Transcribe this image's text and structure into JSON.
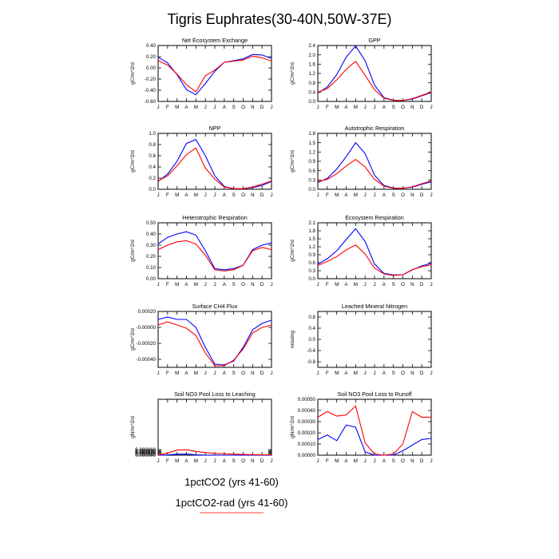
{
  "figure_title": "Tigris Euphrates(30-40N,50W-37E)",
  "months": [
    "J",
    "F",
    "M",
    "A",
    "M",
    "J",
    "J",
    "A",
    "S",
    "O",
    "N",
    "D",
    "J"
  ],
  "colors": {
    "series_1": "#0000ff",
    "series_2": "#ff0000"
  },
  "legend": {
    "items": [
      {
        "label": "1pctCO2 (yrs 41-60)",
        "color": "#0000ff"
      },
      {
        "label": "1pctCO2-rad (yrs 41-60)",
        "color": "#ff0000"
      }
    ]
  },
  "chart_data": [
    {
      "type": "line",
      "title": "Net Ecosystem Exchange",
      "ylabel": "gC/m^2/d",
      "ylim": [
        -0.6,
        0.4
      ],
      "yticks": [
        "0.40",
        "0.20",
        "0.00",
        "-0.20",
        "-0.40",
        "-0.60"
      ],
      "series": [
        {
          "values": [
            0.19,
            0.09,
            -0.12,
            -0.39,
            -0.48,
            -0.28,
            -0.06,
            0.1,
            0.13,
            0.16,
            0.24,
            0.23,
            0.17
          ]
        },
        {
          "values": [
            0.13,
            0.05,
            -0.11,
            -0.3,
            -0.43,
            -0.14,
            -0.04,
            0.1,
            0.12,
            0.14,
            0.21,
            0.18,
            0.12
          ]
        }
      ]
    },
    {
      "type": "line",
      "title": "GPP",
      "ylabel": "gC/m^2/d",
      "ylim": [
        0.0,
        2.4
      ],
      "yticks": [
        "2.4",
        "2.0",
        "1.6",
        "1.2",
        "0.8",
        "0.4",
        "0.0"
      ],
      "series": [
        {
          "values": [
            0.36,
            0.62,
            1.15,
            1.9,
            2.38,
            1.75,
            0.7,
            0.16,
            0.05,
            0.04,
            0.1,
            0.24,
            0.38
          ]
        },
        {
          "values": [
            0.4,
            0.55,
            0.92,
            1.38,
            1.72,
            1.12,
            0.5,
            0.14,
            0.04,
            0.04,
            0.12,
            0.26,
            0.4
          ]
        }
      ]
    },
    {
      "type": "line",
      "title": "NPP",
      "ylabel": "gC/m^2/d",
      "ylim": [
        0.0,
        1.0
      ],
      "yticks": [
        "1.0",
        "0.8",
        "0.6",
        "0.4",
        "0.2",
        "0.0"
      ],
      "series": [
        {
          "values": [
            0.14,
            0.27,
            0.5,
            0.82,
            0.89,
            0.6,
            0.24,
            0.05,
            0.01,
            0.01,
            0.03,
            0.07,
            0.14
          ]
        },
        {
          "values": [
            0.15,
            0.24,
            0.42,
            0.62,
            0.74,
            0.38,
            0.18,
            0.04,
            0.01,
            0.01,
            0.04,
            0.09,
            0.15
          ]
        }
      ]
    },
    {
      "type": "line",
      "title": "Autotrophic Respiration",
      "ylabel": "gC/m^2/d",
      "ylim": [
        0.0,
        1.8
      ],
      "yticks": [
        "1.8",
        "1.5",
        "1.2",
        "0.9",
        "0.6",
        "0.3",
        "0.0"
      ],
      "series": [
        {
          "values": [
            0.22,
            0.35,
            0.65,
            1.05,
            1.5,
            1.15,
            0.45,
            0.12,
            0.04,
            0.03,
            0.07,
            0.16,
            0.24
          ]
        },
        {
          "values": [
            0.25,
            0.32,
            0.5,
            0.75,
            0.96,
            0.72,
            0.32,
            0.1,
            0.03,
            0.03,
            0.08,
            0.18,
            0.27
          ]
        }
      ]
    },
    {
      "type": "line",
      "title": "Heterotrophic Respiration",
      "ylabel": "gC/m^2/d",
      "ylim": [
        0.0,
        0.5
      ],
      "yticks": [
        "0.50",
        "0.40",
        "0.30",
        "0.20",
        "0.10",
        "0.00"
      ],
      "series": [
        {
          "values": [
            0.31,
            0.37,
            0.4,
            0.42,
            0.39,
            0.25,
            0.09,
            0.08,
            0.09,
            0.12,
            0.26,
            0.3,
            0.32
          ]
        },
        {
          "values": [
            0.26,
            0.3,
            0.33,
            0.34,
            0.31,
            0.21,
            0.08,
            0.07,
            0.08,
            0.12,
            0.25,
            0.28,
            0.26
          ]
        }
      ]
    },
    {
      "type": "line",
      "title": "Ecosystem Respiration",
      "ylabel": "gC/m^2/d",
      "ylim": [
        0.0,
        2.1
      ],
      "yticks": [
        "2.1",
        "1.8",
        "1.5",
        "1.2",
        "0.9",
        "0.6",
        "0.3",
        "0.0"
      ],
      "series": [
        {
          "values": [
            0.55,
            0.75,
            1.05,
            1.47,
            1.88,
            1.4,
            0.55,
            0.2,
            0.14,
            0.15,
            0.33,
            0.48,
            0.58
          ]
        },
        {
          "values": [
            0.5,
            0.65,
            0.83,
            1.08,
            1.27,
            0.93,
            0.4,
            0.18,
            0.12,
            0.15,
            0.34,
            0.45,
            0.52
          ]
        }
      ]
    },
    {
      "type": "line",
      "title": "Surface CH4 Flux",
      "ylabel": "gC/m^2/d",
      "ylim": [
        -0.0005,
        0.0002
      ],
      "yticks": [
        "0.00020",
        "-0.00000",
        "-0.00020",
        "-0.00040"
      ],
      "series": [
        {
          "values": [
            0.0001,
            0.00013,
            0.0001,
            0.0001,
            0.0,
            -0.00025,
            -0.00046,
            -0.00047,
            -0.00042,
            -0.00025,
            -3e-05,
            5e-05,
            9e-05
          ]
        },
        {
          "values": [
            3e-05,
            7e-05,
            3e-05,
            -1e-05,
            -0.0001,
            -0.00032,
            -0.00048,
            -0.00048,
            -0.00041,
            -0.00027,
            -7e-05,
            0.0,
            3e-05
          ]
        }
      ]
    },
    {
      "type": "line",
      "title": "Leached Mineral Nitrogen",
      "ylabel": "missing",
      "ylim": [
        -1.0,
        1.0
      ],
      "yticks": [
        "0.8",
        "0.4",
        "0.0",
        "-0.4",
        "-0.8"
      ],
      "series": []
    },
    {
      "type": "line",
      "title": "Soil NO3 Pool Loss to Leaching",
      "ylabel": "gN/m^2/d",
      "ylim": [
        0.0,
        0.0006
      ],
      "yticks": [
        "0.000060",
        "0.000050",
        "0.000040",
        "0.000030",
        "0.000020",
        "0.000010",
        "0.000000"
      ],
      "series": [
        {
          "values": [
            5e-07,
            3e-06,
            1.1e-05,
            1.2e-05,
            4e-06,
            1e-06,
            3e-07,
            1e-07,
            0.0,
            0.0,
            0.0,
            0.0,
            5e-07
          ]
        },
        {
          "values": [
            5e-06,
            2.2e-05,
            5.5e-05,
            5.8e-05,
            4e-05,
            2.8e-05,
            2e-05,
            1.5e-05,
            1.1e-05,
            8e-06,
            6e-06,
            4e-06,
            5e-06
          ]
        }
      ]
    },
    {
      "type": "line",
      "title": "Soil NO3 Pool Loss to Runoff",
      "ylabel": "gN/m^2/d",
      "ylim": [
        0.0,
        0.0005
      ],
      "yticks": [
        "0.00050",
        "0.00040",
        "0.00030",
        "0.00020",
        "0.00010",
        "0.00000"
      ],
      "series": [
        {
          "values": [
            0.00014,
            0.00018,
            0.00013,
            0.00027,
            0.00025,
            3e-05,
            0.0,
            0.0,
            0.0,
            4e-05,
            9e-05,
            0.00014,
            0.00015
          ]
        },
        {
          "values": [
            0.00034,
            0.00039,
            0.00035,
            0.00036,
            0.00044,
            0.00011,
            1e-05,
            0.0,
            1e-05,
            0.0001,
            0.00039,
            0.00034,
            0.00034
          ]
        }
      ]
    }
  ]
}
